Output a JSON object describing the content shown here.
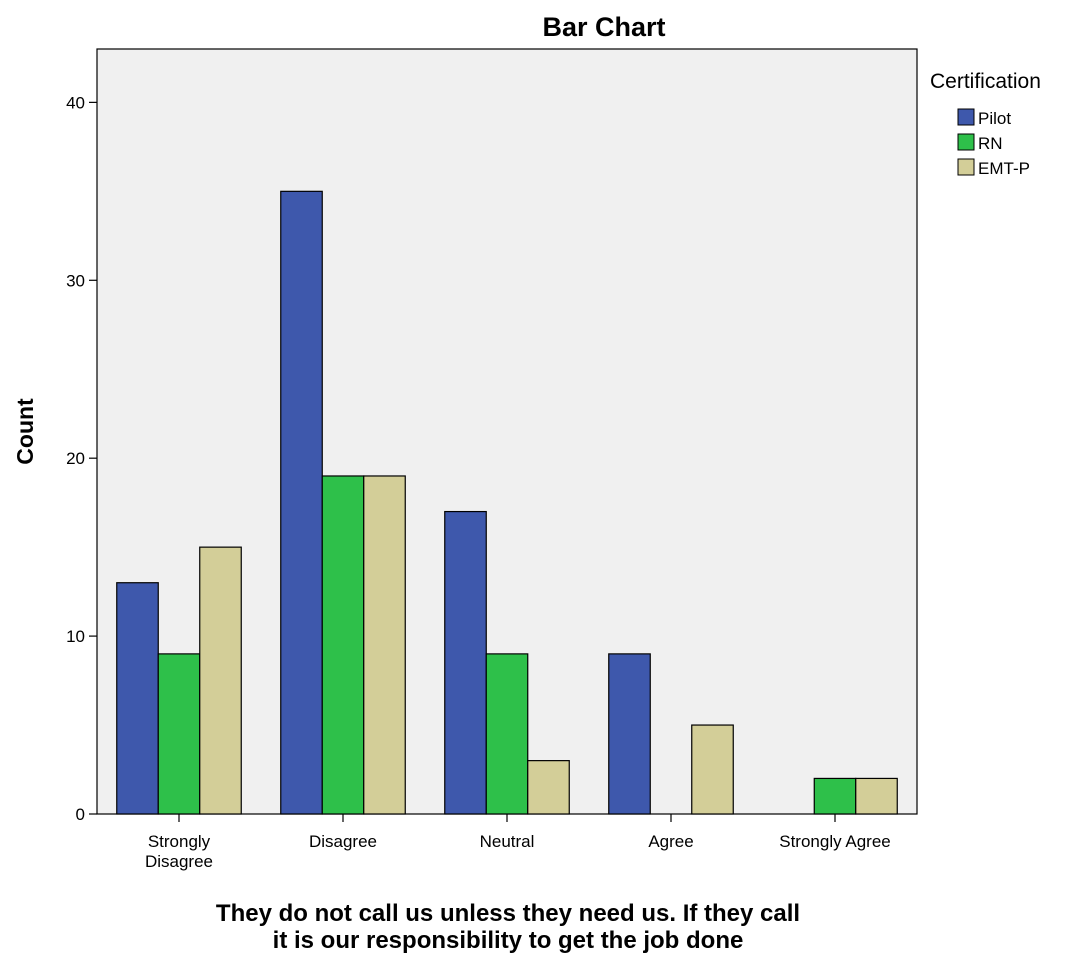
{
  "chart_data": {
    "type": "bar",
    "title": "Bar Chart",
    "xlabel": "They do not call us unless they need us.  If they call it is our responsibility to get the job done",
    "xlabel_lines": [
      "They do not call us unless they need us.  If they call",
      "it is our responsibility to get the job done"
    ],
    "ylabel": "Count",
    "ylim": [
      0,
      43
    ],
    "yticks": [
      0,
      10,
      20,
      30,
      40
    ],
    "categories": [
      "Strongly Disagree",
      "Disagree",
      "Neutral",
      "Agree",
      "Strongly Agree"
    ],
    "category_label_lines": [
      [
        "Strongly",
        "Disagree"
      ],
      [
        "Disagree"
      ],
      [
        "Neutral"
      ],
      [
        "Agree"
      ],
      [
        "Strongly Agree"
      ]
    ],
    "legend_title": "Certification",
    "legend_position": "right",
    "grid": false,
    "series": [
      {
        "name": "Pilot",
        "color": "#3e58ac",
        "values": [
          13,
          35,
          17,
          9,
          0
        ]
      },
      {
        "name": "RN",
        "color": "#2ec04a",
        "values": [
          9,
          19,
          9,
          0,
          2
        ]
      },
      {
        "name": "EMT-P",
        "color": "#d3ce98",
        "values": [
          15,
          19,
          3,
          5,
          2
        ]
      }
    ],
    "plot_background": "#f0f0f0",
    "bar_edge_color": "#000000"
  }
}
